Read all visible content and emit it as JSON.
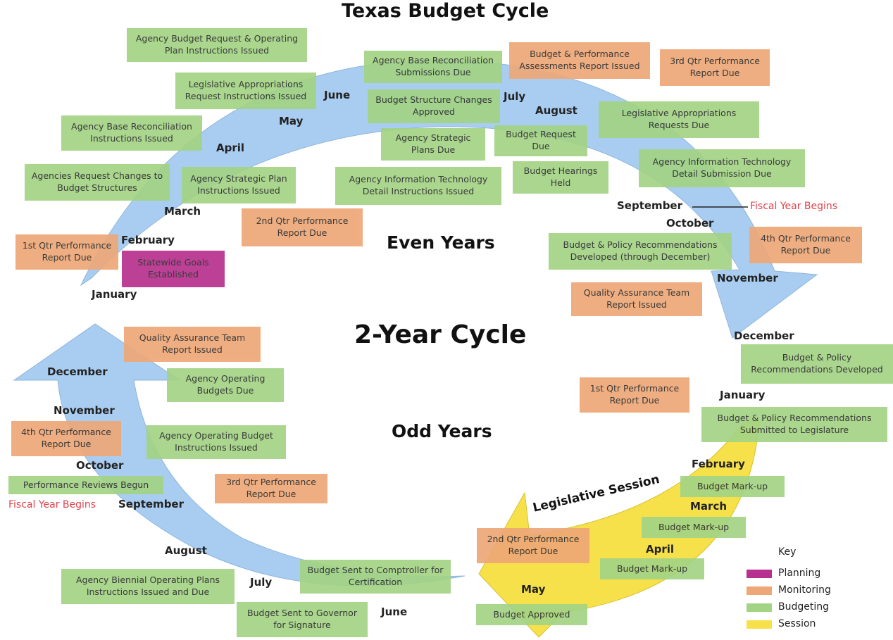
{
  "title": "Texas Budget Cycle",
  "center": {
    "even": "Even Years",
    "cycle": "2-Year Cycle",
    "odd": "Odd Years"
  },
  "even": {
    "months": [
      "January",
      "February",
      "March",
      "April",
      "May",
      "June",
      "July",
      "August",
      "September",
      "October",
      "November",
      "December"
    ],
    "fiscal_year": "Fiscal Year Begins",
    "boxes": [
      "Agency Budget Request & Operating Plan Instructions Issued",
      "Agency Base Reconciliation Submissions Due",
      "Budget & Performance Assessments Report Issued",
      "3rd Qtr Performance Report Due",
      "Legislative Appropriations Request Instructions Issued",
      "Budget Structure Changes Approved",
      "Agency Base Reconciliation Instructions Issued",
      "Agency Strategic Plans Due",
      "Budget Request Due",
      "Legislative Appropriations Requests Due",
      "Agency Information Technology Detail Submission Due",
      "Agencies Request Changes to Budget Structures",
      "Agency Strategic Plan Instructions Issued",
      "Agency Information Technology Detail Instructions Issued",
      "Budget Hearings Held",
      "2nd Qtr Performance Report Due",
      "1st Qtr Performance Report Due",
      "Statewide Goals Established",
      "Budget & Policy Recommendations Developed (through December)",
      "4th Qtr Performance Report Due",
      "Quality Assurance Team Report Issued",
      "Budget & Policy Recommendations Developed"
    ]
  },
  "odd": {
    "months": [
      "January",
      "February",
      "March",
      "April",
      "May",
      "June",
      "July",
      "August",
      "September",
      "October",
      "November",
      "December"
    ],
    "fiscal_year": "Fiscal Year Begins",
    "session": "Legislative Session",
    "boxes": [
      "Quality Assurance Team Report Issued",
      "Agency Operating Budgets Due",
      "1st Qtr Performance Report Due",
      "Budget & Policy Recommendations Submitted to Legislature",
      "4th Qtr Performance Report Due",
      "Agency Operating Budget Instructions Issued",
      "Performance Reviews Begun",
      "3rd Qtr Performance Report Due",
      "Budget Mark-up",
      "Budget Mark-up",
      "Budget Mark-up",
      "2nd Qtr Performance Report Due",
      "Budget Sent to Comptroller for Certification",
      "Agency Biennial Operating Plans Instructions Issued and Due",
      "Budget Sent to Governor for Signature",
      "Budget Approved"
    ]
  },
  "key": {
    "title": "Key",
    "items": [
      {
        "label": "Planning",
        "color": "#b8308f"
      },
      {
        "label": "Monitoring",
        "color": "#eea877"
      },
      {
        "label": "Budgeting",
        "color": "#a3d385"
      },
      {
        "label": "Session",
        "color": "#f7e14a"
      }
    ]
  }
}
